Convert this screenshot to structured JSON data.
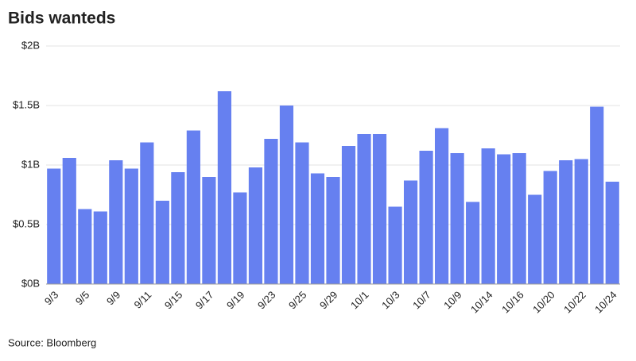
{
  "chart_data": {
    "type": "bar",
    "title": "Bids wanteds",
    "source": "Source: Bloomberg",
    "categories": [
      "9/3",
      null,
      "9/5",
      null,
      "9/9",
      null,
      "9/11",
      null,
      "9/15",
      null,
      "9/17",
      null,
      "9/19",
      null,
      "9/23",
      null,
      "9/25",
      null,
      "9/29",
      null,
      "10/1",
      null,
      "10/3",
      null,
      "10/7",
      null,
      "10/9",
      null,
      "10/14",
      null,
      "10/16",
      null,
      "10/20",
      null,
      "10/22",
      null,
      "10/24"
    ],
    "values": [
      0.97,
      1.06,
      0.63,
      0.61,
      1.04,
      0.97,
      1.19,
      0.7,
      0.94,
      1.29,
      0.9,
      1.62,
      0.77,
      0.98,
      1.22,
      1.5,
      1.19,
      0.93,
      0.9,
      1.16,
      1.26,
      1.26,
      0.65,
      0.87,
      1.12,
      1.31,
      1.1,
      0.69,
      1.14,
      1.09,
      1.1,
      0.75,
      0.95,
      1.04,
      1.05,
      1.49,
      0.86
    ],
    "color": "#6680f0",
    "ylim": [
      0,
      2
    ],
    "yticks": [
      {
        "value": 0,
        "label": "$0B"
      },
      {
        "value": 0.5,
        "label": "$0.5B"
      },
      {
        "value": 1,
        "label": "$1B"
      },
      {
        "value": 1.5,
        "label": "$1.5B"
      },
      {
        "value": 2,
        "label": "$2B"
      }
    ],
    "grid": true
  }
}
